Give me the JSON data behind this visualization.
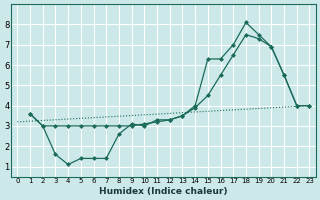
{
  "xlabel": "Humidex (Indice chaleur)",
  "bg_color": "#cce8e8",
  "line_color": "#1a6b5a",
  "grid_color": "#ffffff",
  "xlim": [
    -0.5,
    23.5
  ],
  "ylim": [
    0.5,
    9.0
  ],
  "yticks": [
    1,
    2,
    3,
    4,
    5,
    6,
    7,
    8
  ],
  "xticks": [
    0,
    1,
    2,
    3,
    4,
    5,
    6,
    7,
    8,
    9,
    10,
    11,
    12,
    13,
    14,
    15,
    16,
    17,
    18,
    19,
    20,
    21,
    22,
    23
  ],
  "line1_x": [
    1,
    2,
    3,
    4,
    5,
    6,
    7,
    8,
    9,
    10,
    11,
    12,
    13,
    14,
    15,
    16,
    17,
    18,
    19,
    20,
    21,
    22,
    23
  ],
  "line1_y": [
    3.6,
    3.0,
    1.6,
    1.1,
    1.4,
    1.4,
    1.4,
    2.6,
    3.1,
    3.0,
    3.3,
    3.3,
    3.5,
    4.0,
    6.3,
    6.3,
    7.0,
    8.1,
    7.5,
    6.9,
    5.5,
    4.0,
    4.0
  ],
  "line2_x": [
    1,
    2,
    3,
    4,
    5,
    6,
    7,
    8,
    9,
    10,
    11,
    12,
    13,
    14,
    15,
    16,
    17,
    18,
    19,
    20,
    21,
    22,
    23
  ],
  "line2_y": [
    3.6,
    3.0,
    3.0,
    3.0,
    3.0,
    3.0,
    3.0,
    3.0,
    3.0,
    3.1,
    3.2,
    3.3,
    3.5,
    3.9,
    4.5,
    5.5,
    6.5,
    7.5,
    7.3,
    6.9,
    5.5,
    4.0,
    4.0
  ],
  "line3_x": [
    0,
    23
  ],
  "line3_y": [
    3.2,
    4.0
  ]
}
